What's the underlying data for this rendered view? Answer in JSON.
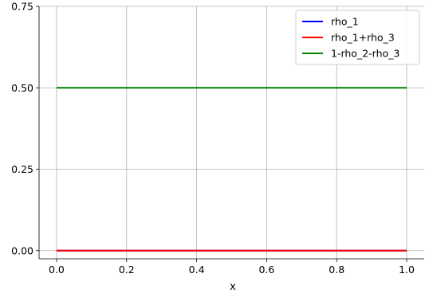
{
  "chart_data": {
    "type": "line",
    "title": "",
    "xlabel": "x",
    "ylabel": "",
    "xlim": [
      -0.05,
      1.05
    ],
    "ylim": [
      -0.025,
      0.75
    ],
    "xticks": [
      0.0,
      0.2,
      0.4,
      0.6,
      0.8,
      1.0
    ],
    "xtick_labels": [
      "0.0",
      "0.2",
      "0.4",
      "0.6",
      "0.8",
      "1.0"
    ],
    "yticks": [
      0.0,
      0.25,
      0.5,
      0.75
    ],
    "ytick_labels": [
      "0.00",
      "0.25",
      "0.50",
      "0.75"
    ],
    "grid": true,
    "legend_position": "top-right",
    "x": [
      0.0,
      1.0
    ],
    "series": [
      {
        "name": "rho_1",
        "color": "#0000ff",
        "values": [
          0.0,
          0.0
        ]
      },
      {
        "name": "rho_1+rho_3",
        "color": "#ff0000",
        "values": [
          0.0,
          0.0
        ]
      },
      {
        "name": "1-rho_2-rho_3",
        "color": "#008000",
        "values": [
          0.5,
          0.5
        ]
      }
    ]
  }
}
